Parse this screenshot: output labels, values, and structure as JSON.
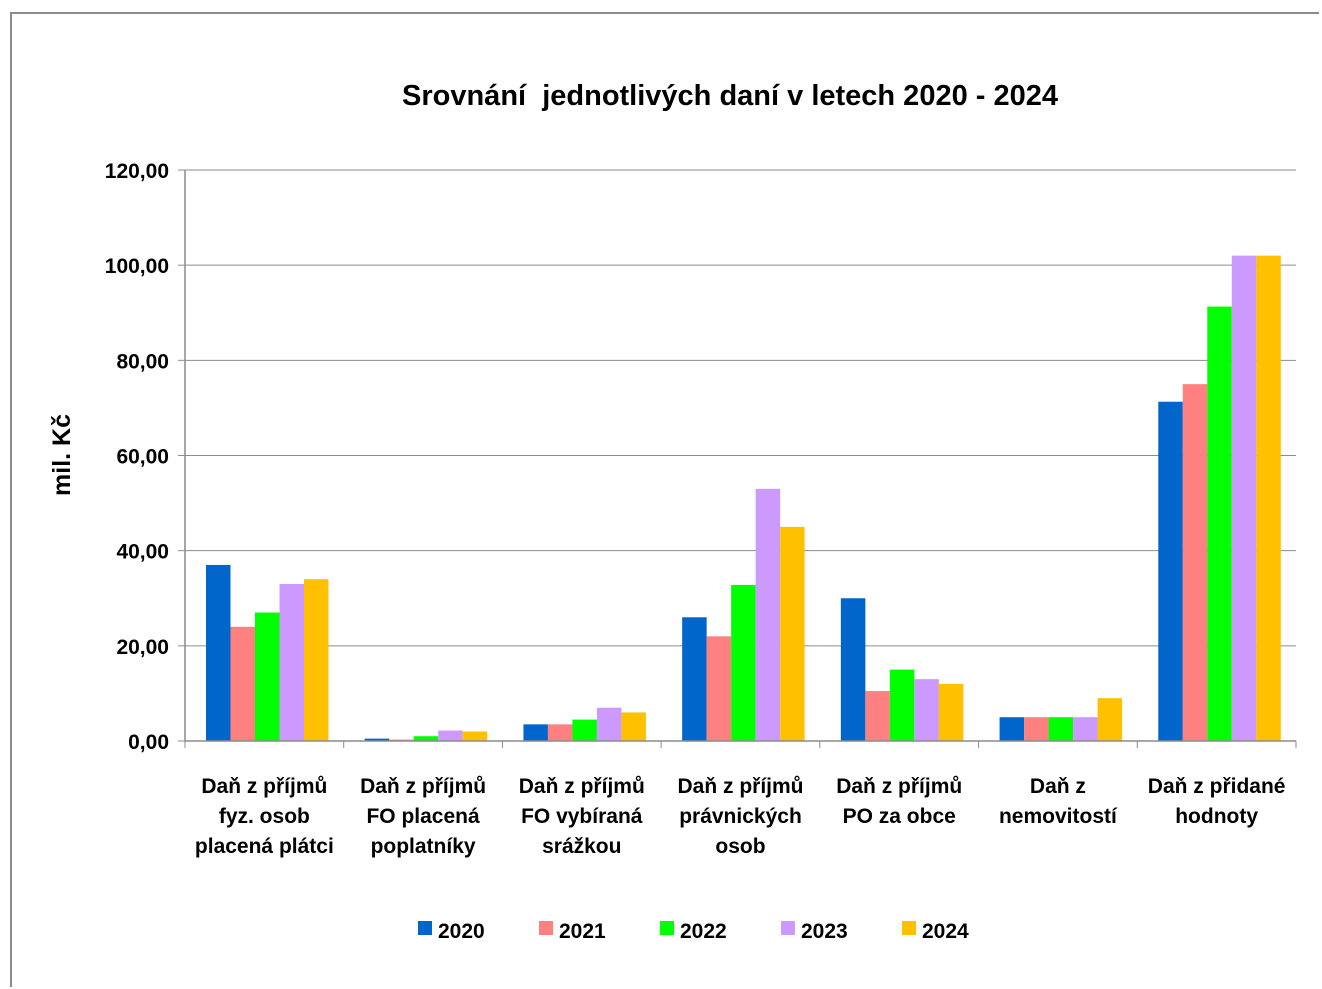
{
  "chart_data": {
    "type": "bar",
    "title": "Srovnání  jednotlivých daní v letech 2020 - 2024",
    "ylabel": "mil. Kč",
    "xlabel": "",
    "ylim": [
      0,
      120
    ],
    "yticks": [
      "0,00",
      "20,00",
      "40,00",
      "60,00",
      "80,00",
      "100,00",
      "120,00"
    ],
    "grid": true,
    "legend_position": "bottom",
    "categories": [
      [
        "Daň z příjmů",
        "fyz. osob",
        "placená plátci"
      ],
      [
        "Daň z příjmů",
        "FO placená",
        "poplatníky"
      ],
      [
        "Daň z příjmů",
        "FO vybíraná",
        "srážkou"
      ],
      [
        "Daň z příjmů",
        "právnických",
        "osob"
      ],
      [
        "Daň z příjmů",
        "PO za obce"
      ],
      [
        "Daň z",
        "nemovitostí"
      ],
      [
        "Daň z přidané",
        "hodnoty"
      ]
    ],
    "series": [
      {
        "name": "2020",
        "color": "#0066CC",
        "values": [
          37.0,
          0.5,
          3.5,
          26.0,
          30.0,
          5.0,
          71.3
        ]
      },
      {
        "name": "2021",
        "color": "#FF8080",
        "values": [
          24.0,
          0.3,
          3.5,
          22.0,
          10.5,
          5.0,
          75.0
        ]
      },
      {
        "name": "2022",
        "color": "#00FF00",
        "values": [
          27.0,
          1.0,
          4.5,
          32.8,
          15.0,
          5.0,
          91.3
        ]
      },
      {
        "name": "2023",
        "color": "#CC99FF",
        "values": [
          33.0,
          2.2,
          7.0,
          53.0,
          13.0,
          5.0,
          102.0
        ]
      },
      {
        "name": "2024",
        "color": "#FFC000",
        "values": [
          34.0,
          2.0,
          6.0,
          45.0,
          12.0,
          9.0,
          102.0
        ]
      }
    ]
  }
}
